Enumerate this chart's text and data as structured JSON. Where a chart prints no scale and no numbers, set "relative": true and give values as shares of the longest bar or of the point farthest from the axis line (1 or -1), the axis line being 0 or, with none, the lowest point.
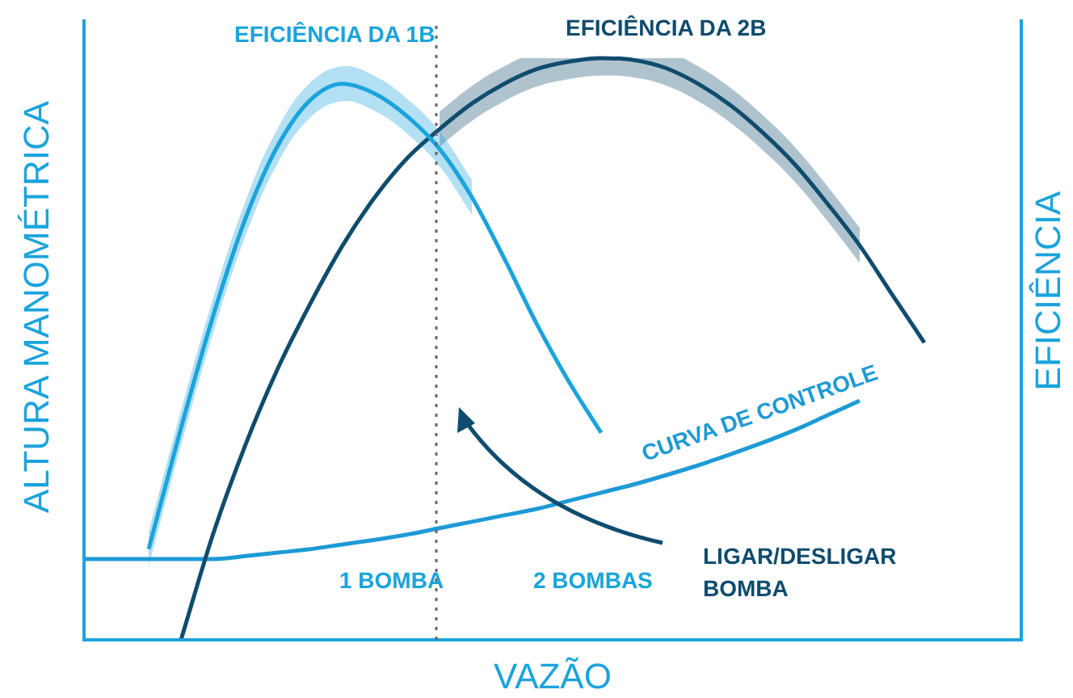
{
  "chart_data": {
    "type": "line",
    "relative": true,
    "xlabel": "VAZÃO",
    "ylabel": "ALTURA MANOMÉTRICA",
    "y2label": "EFICIÊNCIA",
    "categories": [
      null,
      null,
      null,
      null,
      null,
      null,
      null,
      null,
      null,
      null,
      null,
      null,
      null,
      null,
      null,
      null,
      null,
      null,
      null,
      null,
      null,
      null,
      null,
      null,
      null,
      null,
      null,
      null,
      null,
      null
    ],
    "series": [
      {
        "name": "EFICIÊNCIA DA 1B",
        "color": "#1ba3dc",
        "values": [
          null,
          null,
          0.156,
          0.364,
          0.558,
          0.725,
          0.85,
          0.928,
          0.956,
          0.939,
          0.9,
          0.844,
          0.761,
          0.656,
          0.544,
          0.444,
          0.356,
          null,
          null,
          null,
          null,
          null,
          null,
          null,
          null,
          null,
          null,
          null,
          null,
          null
        ],
        "lower": [
          null,
          null,
          0.126,
          0.334,
          0.528,
          0.695,
          0.82,
          0.898,
          0.926,
          0.909,
          0.87,
          0.814,
          0.731,
          null,
          null,
          null,
          null,
          null,
          null,
          null,
          null,
          null,
          null,
          null,
          null,
          null,
          null,
          null,
          null,
          null
        ],
        "upper": [
          null,
          null,
          0.186,
          0.394,
          0.588,
          0.755,
          0.88,
          0.958,
          0.986,
          0.969,
          0.93,
          0.874,
          0.791,
          null,
          null,
          null,
          null,
          null,
          null,
          null,
          null,
          null,
          null,
          null,
          null,
          null,
          null,
          null,
          null,
          null
        ]
      },
      {
        "name": "EFICIÊNCIA DA 2B",
        "color": "#0f4c6e",
        "values": [
          null,
          null,
          null,
          0,
          0.183,
          0.336,
          0.467,
          0.578,
          0.678,
          0.761,
          0.828,
          0.878,
          0.922,
          0.956,
          0.981,
          0.994,
          1,
          0.997,
          0.983,
          0.956,
          0.919,
          0.872,
          0.817,
          0.75,
          0.678,
          0.594,
          0.511,
          null,
          null,
          null
        ],
        "lower": [
          null,
          null,
          null,
          null,
          null,
          null,
          null,
          null,
          null,
          null,
          null,
          0.848,
          0.892,
          0.926,
          0.951,
          0.964,
          0.97,
          0.967,
          0.953,
          0.926,
          0.889,
          0.842,
          0.787,
          0.72,
          0.648,
          null,
          null,
          null,
          null,
          null
        ],
        "upper": [
          null,
          null,
          null,
          null,
          null,
          null,
          null,
          null,
          null,
          null,
          null,
          0.908,
          0.952,
          0.986,
          1.011,
          1.024,
          1.03,
          1.027,
          1.013,
          0.986,
          0.949,
          0.902,
          0.847,
          0.78,
          0.708,
          null,
          null,
          null,
          null,
          null
        ]
      },
      {
        "name": "CURVA DE CONTROLE",
        "color": "#1e9ad6",
        "values": [
          0.139,
          0.139,
          0.139,
          0.139,
          0.139,
          0.144,
          0.15,
          0.156,
          0.164,
          0.172,
          0.181,
          0.192,
          0.203,
          0.214,
          0.225,
          0.239,
          0.253,
          0.267,
          0.283,
          0.3,
          0.319,
          0.339,
          0.361,
          0.386,
          0.411,
          null,
          null,
          null,
          null,
          null
        ]
      }
    ],
    "annotations": [
      "1 BOMBA",
      "2 BOMBAS",
      "LIGAR/DESLIGAR BOMBA"
    ],
    "legend": false
  }
}
